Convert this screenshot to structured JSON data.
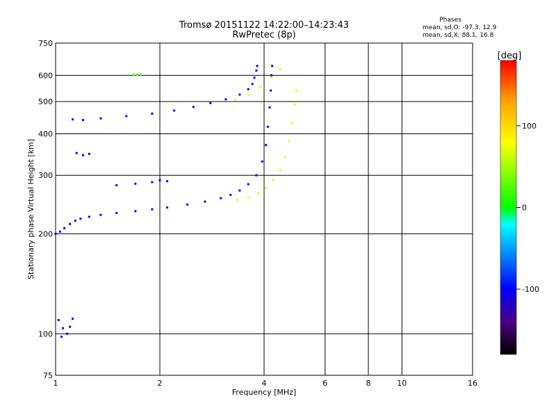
{
  "header": {
    "title_line1": "Tromsø 20151122 14:22:00–14:23:43",
    "title_line2": "RwPretec (8p)"
  },
  "stats": {
    "heading": "Phases",
    "o_line": "mean, sd,O:  -97.3, 12.9",
    "x_line": "mean, sd,X:  88.1, 16.8"
  },
  "chart_data": {
    "type": "scatter",
    "title": "Tromsø 20151122 14:22:00–14:23:43",
    "subtitle": "RwPretec (8p)",
    "xlabel": "Frequency [MHz]",
    "ylabel": "Stationary phase Virtual Height [km]",
    "x_scale": "log",
    "y_scale": "log",
    "xlim": [
      1,
      16
    ],
    "ylim": [
      75,
      750
    ],
    "x_ticks": [
      1,
      2,
      4,
      6,
      8,
      10,
      16
    ],
    "x_tick_labels": [
      "1",
      "2",
      "4",
      "6",
      "8",
      "10",
      "16"
    ],
    "x_gridlines": [
      2,
      4,
      6,
      8,
      10
    ],
    "y_ticks": [
      75,
      100,
      200,
      300,
      400,
      500,
      600,
      750
    ],
    "y_tick_labels": [
      "75",
      "100",
      "200",
      "300",
      "400",
      "500",
      "600",
      "750"
    ],
    "y_gridlines": [
      100,
      200,
      300,
      400,
      500,
      600
    ],
    "grid": true,
    "colorbar": {
      "label": "[deg]",
      "range": [
        -180,
        180
      ],
      "ticks": [
        100,
        0,
        -100
      ],
      "tick_labels": [
        "100",
        "0",
        "-100"
      ],
      "stops": [
        {
          "v": -180,
          "color": "#000000"
        },
        {
          "v": -140,
          "color": "#4b0082"
        },
        {
          "v": -100,
          "color": "#0000ff"
        },
        {
          "v": -20,
          "color": "#00ffff"
        },
        {
          "v": 0,
          "color": "#00ff00"
        },
        {
          "v": 80,
          "color": "#ffff00"
        },
        {
          "v": 130,
          "color": "#ffa500"
        },
        {
          "v": 180,
          "color": "#ff0000"
        }
      ]
    },
    "series": [
      {
        "mode": "O",
        "phase": -100,
        "points": [
          [
            1.0,
            200
          ],
          [
            1.03,
            203
          ],
          [
            1.06,
            208
          ],
          [
            1.1,
            214
          ],
          [
            1.14,
            219
          ],
          [
            1.18,
            222
          ],
          [
            1.25,
            225
          ],
          [
            1.35,
            228
          ],
          [
            1.5,
            231
          ],
          [
            1.7,
            234
          ],
          [
            1.9,
            237
          ],
          [
            2.1,
            240
          ],
          [
            2.4,
            245
          ],
          [
            2.7,
            250
          ],
          [
            3.0,
            256
          ],
          [
            3.2,
            262
          ],
          [
            3.4,
            270
          ],
          [
            3.6,
            282
          ],
          [
            3.8,
            300
          ],
          [
            3.95,
            330
          ],
          [
            4.05,
            370
          ],
          [
            4.1,
            420
          ],
          [
            4.15,
            480
          ],
          [
            4.18,
            540
          ],
          [
            4.2,
            600
          ],
          [
            4.22,
            640
          ]
        ]
      },
      {
        "mode": "O",
        "phase": -100,
        "points": [
          [
            1.12,
            442
          ],
          [
            1.2,
            440
          ],
          [
            1.35,
            445
          ],
          [
            1.6,
            452
          ],
          [
            1.9,
            460
          ],
          [
            2.2,
            470
          ],
          [
            2.5,
            482
          ],
          [
            2.8,
            495
          ],
          [
            3.1,
            508
          ],
          [
            3.4,
            525
          ],
          [
            3.6,
            545
          ],
          [
            3.7,
            565
          ],
          [
            3.75,
            590
          ],
          [
            3.8,
            620
          ],
          [
            3.82,
            640
          ]
        ]
      },
      {
        "mode": "O",
        "phase": -100,
        "points": [
          [
            1.5,
            280
          ],
          [
            1.7,
            283
          ],
          [
            1.9,
            286
          ],
          [
            2.0,
            290
          ],
          [
            2.1,
            288
          ]
        ]
      },
      {
        "mode": "O",
        "phase": -100,
        "points": [
          [
            1.15,
            350
          ],
          [
            1.2,
            345
          ],
          [
            1.25,
            348
          ]
        ]
      },
      {
        "mode": "O",
        "phase": -100,
        "points": [
          [
            1.02,
            110
          ],
          [
            1.05,
            104
          ],
          [
            1.08,
            100
          ],
          [
            1.1,
            105
          ],
          [
            1.12,
            111
          ],
          [
            1.04,
            98
          ]
        ]
      },
      {
        "mode": "X",
        "phase": 90,
        "points": [
          [
            3.35,
            253
          ],
          [
            3.6,
            257
          ],
          [
            3.85,
            265
          ],
          [
            4.05,
            275
          ],
          [
            4.25,
            290
          ],
          [
            4.45,
            310
          ],
          [
            4.6,
            340
          ],
          [
            4.72,
            380
          ],
          [
            4.82,
            430
          ],
          [
            4.9,
            490
          ],
          [
            4.95,
            540
          ]
        ]
      },
      {
        "mode": "X",
        "phase": 90,
        "points": [
          [
            3.3,
            505
          ],
          [
            3.6,
            525
          ],
          [
            3.9,
            555
          ],
          [
            4.2,
            590
          ],
          [
            4.45,
            625
          ]
        ]
      },
      {
        "mode": "X",
        "phase": 20,
        "points": [
          [
            1.68,
            603
          ],
          [
            1.72,
            603
          ],
          [
            1.76,
            603
          ]
        ]
      }
    ]
  }
}
